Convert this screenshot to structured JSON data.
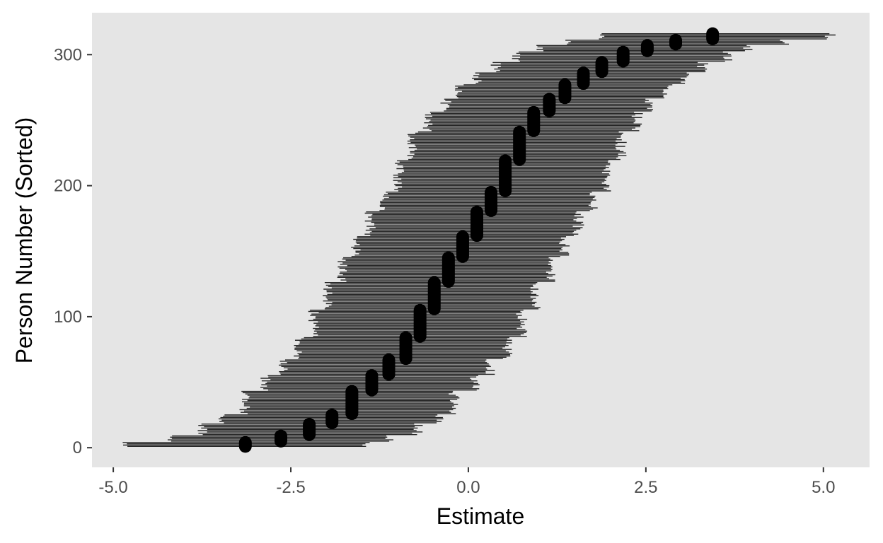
{
  "chart_data": {
    "type": "scatter",
    "title": "",
    "xlabel": "Estimate",
    "ylabel": "Person Number (Sorted)",
    "xlim": [
      -5.3,
      5.65
    ],
    "ylim": [
      -15,
      332
    ],
    "x_ticks": [
      {
        "value": -5.0,
        "label": "-5.0"
      },
      {
        "value": -2.5,
        "label": "-2.5"
      },
      {
        "value": 0.0,
        "label": "0.0"
      },
      {
        "value": 2.5,
        "label": "2.5"
      },
      {
        "value": 5.0,
        "label": "5.0"
      }
    ],
    "y_ticks": [
      {
        "value": 0,
        "label": "0"
      },
      {
        "value": 100,
        "label": "100"
      },
      {
        "value": 200,
        "label": "200"
      },
      {
        "value": 300,
        "label": "300"
      }
    ],
    "grid": false,
    "legend": "none",
    "error_bars": "horizontal interval per person (lower, upper)",
    "series": [
      {
        "groups": [
          {
            "estimate": -3.14,
            "rank_start": 1,
            "rank_end": 4,
            "lower": -4.8,
            "upper": -1.45
          },
          {
            "estimate": -2.64,
            "rank_start": 5,
            "rank_end": 9,
            "lower": -4.2,
            "upper": -1.1
          },
          {
            "estimate": -2.24,
            "rank_start": 10,
            "rank_end": 18,
            "lower": -3.75,
            "upper": -0.72
          },
          {
            "estimate": -1.92,
            "rank_start": 19,
            "rank_end": 25,
            "lower": -3.45,
            "upper": -0.42
          },
          {
            "estimate": -1.64,
            "rank_start": 26,
            "rank_end": 43,
            "lower": -3.15,
            "upper": -0.2
          },
          {
            "estimate": -1.36,
            "rank_start": 44,
            "rank_end": 55,
            "lower": -2.85,
            "upper": 0.08
          },
          {
            "estimate": -1.12,
            "rank_start": 56,
            "rank_end": 67,
            "lower": -2.6,
            "upper": 0.32
          },
          {
            "estimate": -0.88,
            "rank_start": 68,
            "rank_end": 84,
            "lower": -2.38,
            "upper": 0.55
          },
          {
            "estimate": -0.68,
            "rank_start": 85,
            "rank_end": 105,
            "lower": -2.18,
            "upper": 0.75
          },
          {
            "estimate": -0.48,
            "rank_start": 106,
            "rank_end": 126,
            "lower": -1.98,
            "upper": 0.95
          },
          {
            "estimate": -0.28,
            "rank_start": 127,
            "rank_end": 145,
            "lower": -1.78,
            "upper": 1.15
          },
          {
            "estimate": -0.08,
            "rank_start": 146,
            "rank_end": 161,
            "lower": -1.58,
            "upper": 1.35
          },
          {
            "estimate": 0.12,
            "rank_start": 162,
            "rank_end": 180,
            "lower": -1.38,
            "upper": 1.55
          },
          {
            "estimate": 0.32,
            "rank_start": 181,
            "rank_end": 195,
            "lower": -1.18,
            "upper": 1.75
          },
          {
            "estimate": 0.52,
            "rank_start": 196,
            "rank_end": 219,
            "lower": -0.98,
            "upper": 1.95
          },
          {
            "estimate": 0.72,
            "rank_start": 220,
            "rank_end": 241,
            "lower": -0.78,
            "upper": 2.15
          },
          {
            "estimate": 0.92,
            "rank_start": 242,
            "rank_end": 256,
            "lower": -0.58,
            "upper": 2.38
          },
          {
            "estimate": 1.14,
            "rank_start": 257,
            "rank_end": 266,
            "lower": -0.32,
            "upper": 2.55
          },
          {
            "estimate": 1.36,
            "rank_start": 267,
            "rank_end": 277,
            "lower": -0.12,
            "upper": 2.8
          },
          {
            "estimate": 1.62,
            "rank_start": 278,
            "rank_end": 286,
            "lower": 0.12,
            "upper": 3.05
          },
          {
            "estimate": 1.88,
            "rank_start": 287,
            "rank_end": 294,
            "lower": 0.38,
            "upper": 3.3
          },
          {
            "estimate": 2.18,
            "rank_start": 295,
            "rank_end": 302,
            "lower": 0.68,
            "upper": 3.65
          },
          {
            "estimate": 2.52,
            "rank_start": 303,
            "rank_end": 307,
            "lower": 1.02,
            "upper": 3.95
          },
          {
            "estimate": 2.92,
            "rank_start": 308,
            "rank_end": 311,
            "lower": 1.4,
            "upper": 4.45
          },
          {
            "estimate": 3.44,
            "rank_start": 312,
            "rank_end": 316,
            "lower": 1.9,
            "upper": 5.1
          }
        ]
      }
    ],
    "colors": {
      "panel": "#e5e5e5",
      "bars": "#262626",
      "points": "#000000",
      "tick_text": "#4d4d4d",
      "tick_mark": "#333333"
    }
  }
}
